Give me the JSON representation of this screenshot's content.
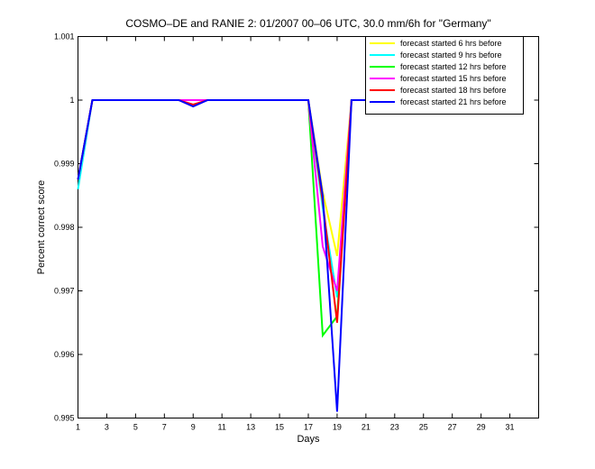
{
  "chart_data": {
    "type": "line",
    "title": "COSMO–DE and RANIE 2: 01/2007 00–06 UTC, 30.0 mm/6h for \"Germany\"",
    "xlabel": "Days",
    "ylabel": "Percent correct score",
    "xlim": [
      1,
      33
    ],
    "ylim": [
      0.995,
      1.001
    ],
    "xticks": [
      1,
      3,
      5,
      7,
      9,
      11,
      13,
      15,
      17,
      19,
      21,
      23,
      25,
      27,
      29,
      31
    ],
    "xtick_labels": [
      "1",
      "3",
      "5",
      "7",
      "9",
      "11",
      "13",
      "15",
      "17",
      "19",
      "21",
      "23",
      "25",
      "27",
      "29",
      "31"
    ],
    "yticks": [
      0.995,
      0.996,
      0.997,
      0.998,
      0.999,
      1,
      1.001
    ],
    "ytick_labels": [
      "0.995",
      "0.996",
      "0.997",
      "0.998",
      "0.999",
      "1",
      "1.001"
    ],
    "grid": false,
    "legend_position": "top-right",
    "x": [
      1,
      2,
      3,
      4,
      5,
      6,
      7,
      8,
      9,
      10,
      11,
      12,
      13,
      14,
      15,
      16,
      17,
      18,
      19,
      20,
      21,
      22,
      23,
      24,
      25,
      26,
      27,
      28,
      29,
      30,
      31
    ],
    "series": [
      {
        "name": "forecast started 6 hrs before",
        "color": "#ffff00",
        "values": [
          0.99875,
          1,
          1,
          1,
          1,
          1,
          1,
          1,
          1,
          1,
          1,
          1,
          1,
          1,
          1,
          1,
          1,
          0.99855,
          0.99755,
          1,
          1,
          1,
          1,
          1,
          1,
          1,
          1,
          1,
          1,
          1,
          1
        ]
      },
      {
        "name": "forecast started 9 hrs before",
        "color": "#00ffff",
        "values": [
          0.9986,
          1,
          1,
          1,
          1,
          1,
          1,
          1,
          1,
          1,
          1,
          1,
          1,
          1,
          1,
          1,
          1,
          0.9983,
          0.9969,
          1,
          1,
          1,
          1,
          1,
          1,
          1,
          1,
          1,
          1,
          1,
          1
        ]
      },
      {
        "name": "forecast started 12 hrs before",
        "color": "#00ff00",
        "values": [
          0.99875,
          1,
          1,
          1,
          1,
          1,
          1,
          1,
          1,
          1,
          1,
          1,
          1,
          1,
          1,
          1,
          1,
          0.9963,
          0.9966,
          1,
          1,
          1,
          1,
          1,
          1,
          1,
          1,
          1,
          1,
          1,
          1
        ]
      },
      {
        "name": "forecast started 15 hrs before",
        "color": "#ff00ff",
        "values": [
          0.99875,
          1,
          1,
          1,
          1,
          1,
          1,
          1,
          1,
          1,
          1,
          1,
          1,
          1,
          1,
          1,
          1,
          0.9977,
          0.997,
          1,
          1,
          1,
          1,
          1,
          1,
          1,
          1,
          1,
          1,
          1,
          1
        ]
      },
      {
        "name": "forecast started 18 hrs before",
        "color": "#ff0000",
        "values": [
          0.99875,
          1,
          1,
          1,
          1,
          1,
          1,
          1,
          0.99993,
          1,
          1,
          1,
          1,
          1,
          1,
          1,
          1,
          0.9984,
          0.9965,
          1,
          1,
          1,
          1,
          1,
          1,
          1,
          1,
          1,
          1,
          1,
          1
        ]
      },
      {
        "name": "forecast started 21 hrs before",
        "color": "#0000ff",
        "values": [
          0.99875,
          1,
          1,
          1,
          1,
          1,
          1,
          1,
          0.9999,
          1,
          1,
          1,
          1,
          1,
          1,
          1,
          1,
          0.9985,
          0.9951,
          1,
          1,
          1,
          1,
          1,
          1,
          1,
          1,
          1,
          1,
          1,
          1
        ]
      }
    ]
  }
}
